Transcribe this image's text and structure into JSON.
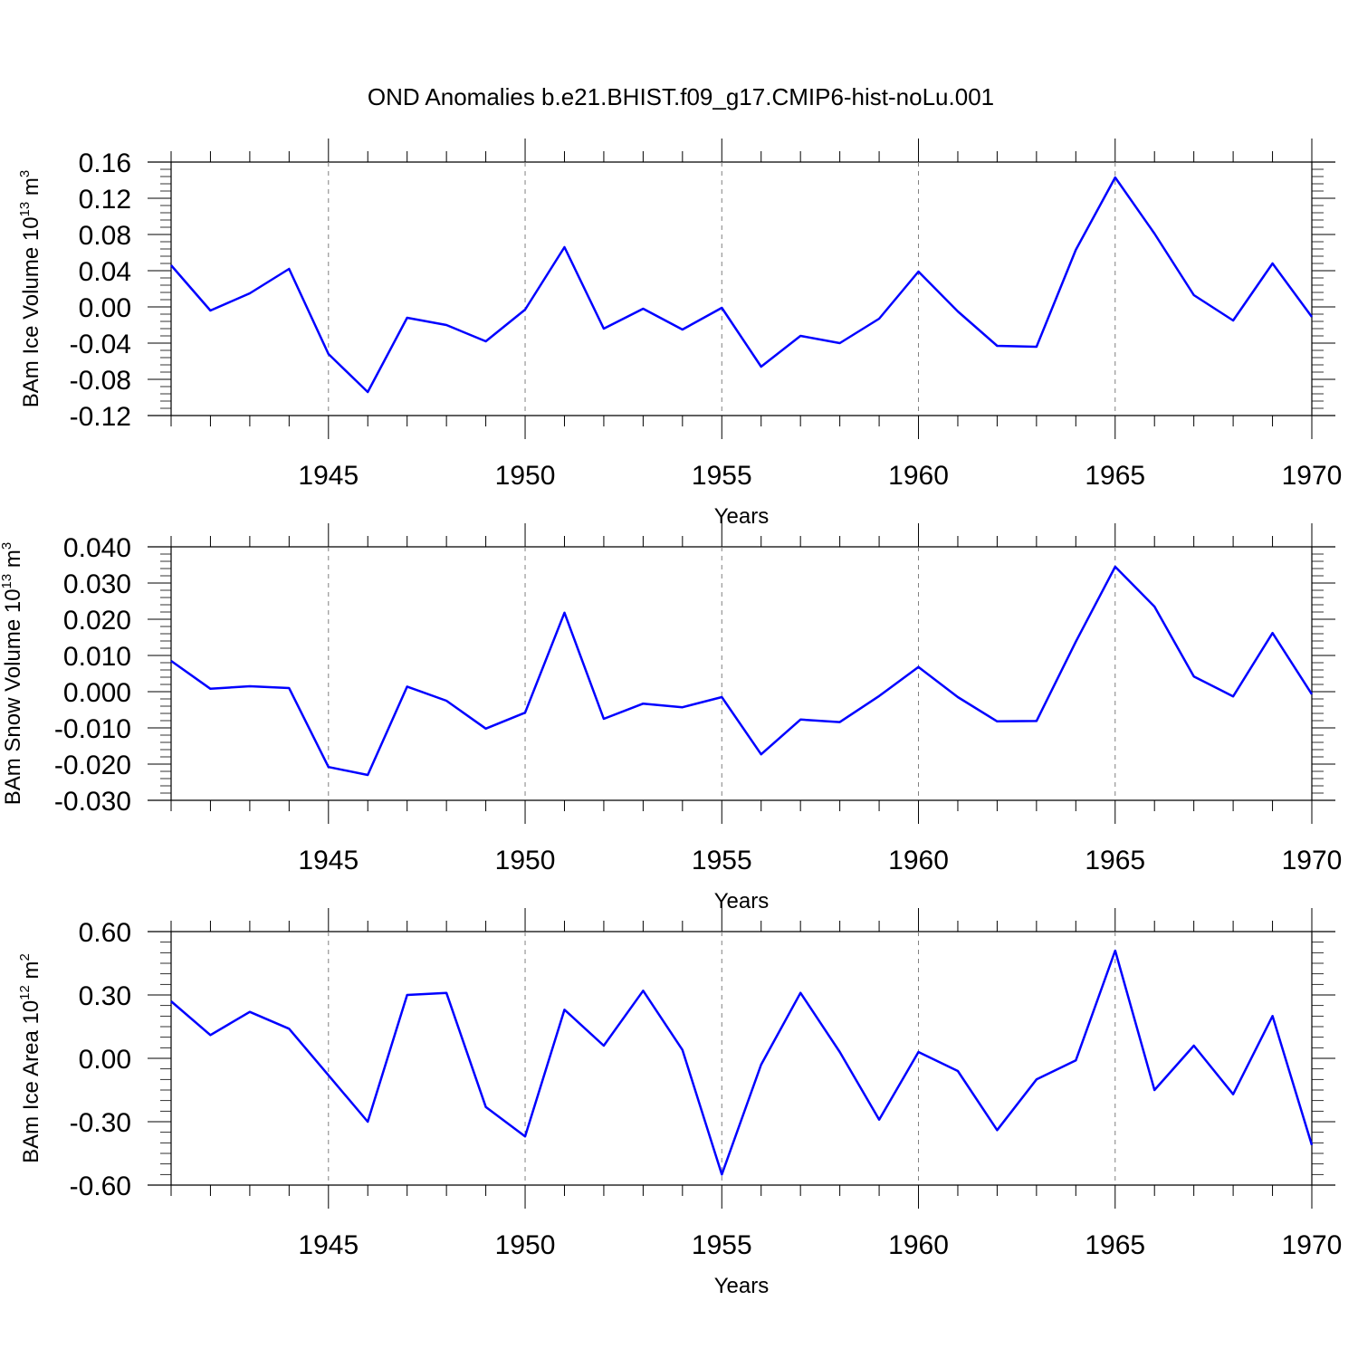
{
  "title": "OND Anomalies b.e21.BHIST.f09_g17.CMIP6-hist-noLu.001",
  "chart_data": [
    {
      "type": "line",
      "ylabel": {
        "main": "BAm Ice Volume 10",
        "exp": "13",
        "unit": " m",
        "unit_exp": "3"
      },
      "xlabel": "Years",
      "xlim": [
        1941,
        1970
      ],
      "ylim": [
        -0.12,
        0.16
      ],
      "yticks": [
        "-0.12",
        "-0.08",
        "-0.04",
        "0.00",
        "0.04",
        "0.08",
        "0.12",
        "0.16"
      ],
      "xticks": [
        "1945",
        "1950",
        "1955",
        "1960",
        "1965",
        "1970"
      ],
      "grid_x": "dashed at 1945, 1950, 1955, 1960, 1965",
      "line_color": "#0000ff",
      "series": [
        {
          "x": [
            1941,
            1942,
            1943,
            1944,
            1945,
            1946,
            1947,
            1948,
            1949,
            1950,
            1951,
            1952,
            1953,
            1954,
            1955,
            1956,
            1957,
            1958,
            1959,
            1960,
            1961,
            1962,
            1963,
            1964,
            1965,
            1966,
            1967,
            1968,
            1969,
            1970
          ],
          "values": [
            0.046,
            -0.004,
            0.015,
            0.042,
            -0.052,
            -0.094,
            -0.012,
            -0.02,
            -0.038,
            -0.003,
            0.066,
            -0.024,
            -0.002,
            -0.025,
            -0.001,
            -0.066,
            -0.032,
            -0.04,
            -0.013,
            0.039,
            -0.005,
            -0.043,
            -0.044,
            0.063,
            0.143,
            0.081,
            0.013,
            -0.015,
            0.048,
            -0.011
          ]
        }
      ]
    },
    {
      "type": "line",
      "ylabel": {
        "main": "BAm Snow Volume 10",
        "exp": "13",
        "unit": " m",
        "unit_exp": "3"
      },
      "xlabel": "Years",
      "xlim": [
        1941,
        1970
      ],
      "ylim": [
        -0.03,
        0.04
      ],
      "yticks": [
        "-0.030",
        "-0.020",
        "-0.010",
        "0.000",
        "0.010",
        "0.020",
        "0.030",
        "0.040"
      ],
      "xticks": [
        "1945",
        "1950",
        "1955",
        "1960",
        "1965",
        "1970"
      ],
      "grid_x": "dashed at 1945, 1950, 1955, 1960, 1965",
      "line_color": "#0000ff",
      "series": [
        {
          "x": [
            1941,
            1942,
            1943,
            1944,
            1945,
            1946,
            1947,
            1948,
            1949,
            1950,
            1951,
            1952,
            1953,
            1954,
            1955,
            1956,
            1957,
            1958,
            1959,
            1960,
            1961,
            1962,
            1963,
            1964,
            1965,
            1966,
            1967,
            1968,
            1969,
            1970
          ],
          "values": [
            0.0085,
            0.0008,
            0.0015,
            0.001,
            -0.0208,
            -0.023,
            0.0014,
            -0.0025,
            -0.0102,
            -0.0058,
            0.0218,
            -0.0075,
            -0.0033,
            -0.0043,
            -0.0015,
            -0.0173,
            -0.0077,
            -0.0084,
            -0.0012,
            0.0068,
            -0.0015,
            -0.0082,
            -0.0081,
            0.0138,
            0.0345,
            0.0235,
            0.0042,
            -0.0013,
            0.0162,
            -0.0007
          ]
        }
      ]
    },
    {
      "type": "line",
      "ylabel": {
        "main": "BAm Ice Area 10",
        "exp": "12",
        "unit": " m",
        "unit_exp": "2"
      },
      "xlabel": "Years",
      "xlim": [
        1941,
        1970
      ],
      "ylim": [
        -0.6,
        0.6
      ],
      "yticks": [
        "-0.60",
        "-0.30",
        "0.00",
        "0.30",
        "0.60"
      ],
      "xticks": [
        "1945",
        "1950",
        "1955",
        "1960",
        "1965",
        "1970"
      ],
      "grid_x": "dashed at 1945, 1950, 1955, 1960, 1965",
      "line_color": "#0000ff",
      "series": [
        {
          "x": [
            1941,
            1942,
            1943,
            1944,
            1945,
            1946,
            1947,
            1948,
            1949,
            1950,
            1951,
            1952,
            1953,
            1954,
            1955,
            1956,
            1957,
            1958,
            1959,
            1960,
            1961,
            1962,
            1963,
            1964,
            1965,
            1966,
            1967,
            1968,
            1969,
            1970
          ],
          "values": [
            0.27,
            0.11,
            0.22,
            0.14,
            -0.08,
            -0.3,
            0.3,
            0.31,
            -0.23,
            -0.37,
            0.23,
            0.06,
            0.32,
            0.04,
            -0.55,
            -0.03,
            0.31,
            0.03,
            -0.29,
            0.03,
            -0.06,
            -0.34,
            -0.1,
            -0.01,
            0.51,
            -0.15,
            0.06,
            -0.17,
            0.2,
            -0.41
          ]
        }
      ]
    }
  ]
}
